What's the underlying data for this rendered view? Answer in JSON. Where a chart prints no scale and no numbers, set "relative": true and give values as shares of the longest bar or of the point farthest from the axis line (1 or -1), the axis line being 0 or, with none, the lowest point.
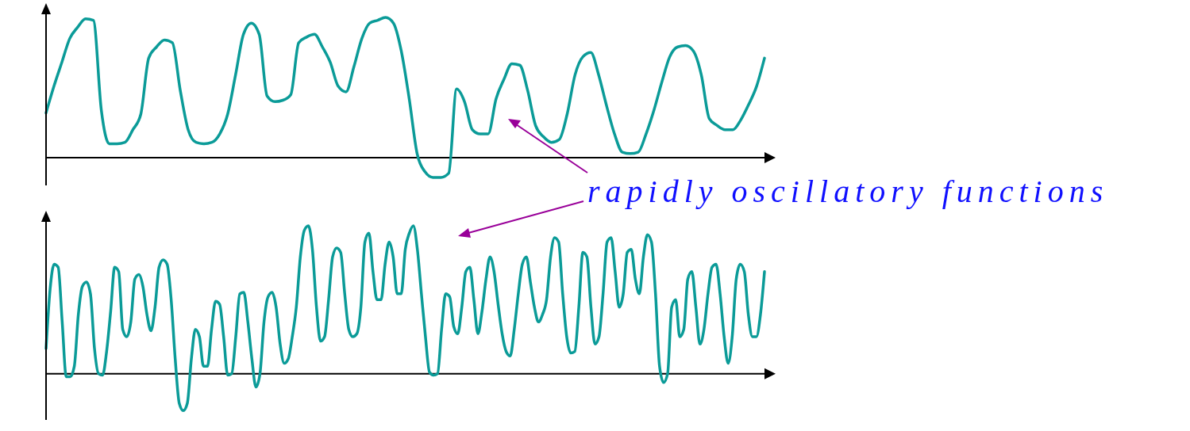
{
  "chart_data": [
    {
      "type": "line",
      "relative": true,
      "marker": "none",
      "annotations": [
        "rapidly oscillatory functions"
      ],
      "categories": [
        null,
        null,
        null,
        null,
        null,
        null,
        null,
        null,
        null,
        null,
        null,
        null,
        null,
        null,
        null,
        null,
        null,
        null,
        null,
        null,
        null,
        null,
        null,
        null,
        null,
        null,
        null,
        null,
        null,
        null,
        null,
        null,
        null,
        null,
        null,
        null,
        null,
        null,
        null,
        null,
        null,
        null,
        null,
        null,
        null,
        null,
        null,
        null,
        null,
        null,
        null,
        null,
        null,
        null,
        null,
        null,
        null,
        null,
        null,
        null,
        null,
        null,
        null,
        null,
        null,
        null,
        null,
        null,
        null,
        null,
        null,
        null,
        null,
        null,
        null,
        null,
        null,
        null,
        null,
        null,
        null,
        null,
        null,
        null,
        null,
        null,
        null,
        null,
        null,
        null,
        null,
        null
      ],
      "series": [
        {
          "color": "#0b9b98",
          "values": [
            0.32,
            0.51,
            0.68,
            0.85,
            0.93,
            0.99,
            0.98,
            0.34,
            0.1,
            0.1,
            0.11,
            0.2,
            0.31,
            0.71,
            0.79,
            0.84,
            0.82,
            0.48,
            0.2,
            0.11,
            0.1,
            0.11,
            0.17,
            0.31,
            0.59,
            0.88,
            0.96,
            0.88,
            0.44,
            0.4,
            0.41,
            0.45,
            0.82,
            0.86,
            0.88,
            0.79,
            0.68,
            0.51,
            0.47,
            0.65,
            0.85,
            0.96,
            0.98,
            1,
            0.96,
            0.76,
            0.42,
            0.03,
            -0.1,
            -0.14,
            -0.14,
            -0.11,
            0.49,
            0.4,
            0.2,
            0.17,
            0.17,
            0.42,
            0.56,
            0.67,
            0.66,
            0.48,
            0.23,
            0.15,
            0.11,
            0.13,
            0.31,
            0.59,
            0.72,
            0.75,
            0.59,
            0.37,
            0.17,
            0.04,
            0.03,
            0.04,
            0.17,
            0.34,
            0.54,
            0.72,
            0.79,
            0.8,
            0.76,
            0.59,
            0.28,
            0.23,
            0.2,
            0.2,
            0.27,
            0.38,
            0.51,
            0.71
          ]
        }
      ]
    },
    {
      "type": "line",
      "relative": true,
      "marker": "none",
      "categories": [
        null,
        null,
        null,
        null,
        null,
        null,
        null,
        null,
        null,
        null,
        null,
        null,
        null,
        null,
        null,
        null,
        null,
        null,
        null,
        null,
        null,
        null,
        null,
        null,
        null,
        null,
        null,
        null,
        null,
        null,
        null,
        null,
        null,
        null,
        null,
        null,
        null,
        null,
        null,
        null,
        null,
        null,
        null,
        null,
        null,
        null,
        null,
        null,
        null,
        null,
        null,
        null,
        null,
        null,
        null,
        null,
        null,
        null,
        null,
        null,
        null,
        null,
        null,
        null,
        null,
        null,
        null,
        null,
        null,
        null,
        null,
        null,
        null,
        null,
        null,
        null,
        null,
        null,
        null,
        null,
        null,
        null,
        null,
        null,
        null,
        null,
        null,
        null,
        null,
        null,
        null,
        null,
        null,
        null,
        null,
        null,
        null,
        null,
        null,
        null,
        null,
        null,
        null,
        null,
        null,
        null,
        null,
        null,
        null,
        null,
        null,
        null,
        null,
        null,
        null,
        null,
        null,
        null,
        null,
        null,
        null,
        null,
        null,
        null,
        null,
        null,
        null,
        null,
        null,
        null,
        null,
        null,
        null,
        null,
        null,
        null,
        null,
        null,
        null,
        null,
        null,
        null,
        null,
        null,
        null,
        null,
        null,
        null,
        null,
        null,
        null,
        null,
        null,
        null,
        null,
        null,
        null,
        null,
        null,
        null,
        null,
        null,
        null,
        null,
        null,
        null,
        null,
        null,
        null,
        null,
        null,
        null,
        null,
        null,
        null,
        null,
        null,
        null,
        null
      ],
      "series": [
        {
          "color": "#0b9b98",
          "values": [
            0.17,
            0.57,
            0.74,
            0.72,
            0.35,
            -0.02,
            -0.02,
            0.05,
            0.4,
            0.59,
            0.62,
            0.54,
            0.17,
            0,
            -0.01,
            0.15,
            0.42,
            0.72,
            0.69,
            0.3,
            0.25,
            0.35,
            0.64,
            0.67,
            0.59,
            0.4,
            0.29,
            0.45,
            0.72,
            0.77,
            0.74,
            0.5,
            0.1,
            -0.2,
            -0.25,
            -0.2,
            0.1,
            0.3,
            0.25,
            0.05,
            0.05,
            0.3,
            0.49,
            0.47,
            0.25,
            -0.01,
            0,
            0.25,
            0.54,
            0.55,
            0.35,
            0.1,
            -0.09,
            0,
            0.35,
            0.52,
            0.55,
            0.45,
            0.2,
            0.07,
            0.1,
            0.25,
            0.45,
            0.79,
            0.97,
            1,
            0.84,
            0.45,
            0.22,
            0.25,
            0.5,
            0.79,
            0.85,
            0.82,
            0.54,
            0.3,
            0.25,
            0.27,
            0.45,
            0.89,
            0.95,
            0.69,
            0.5,
            0.5,
            0.74,
            0.89,
            0.79,
            0.54,
            0.54,
            0.84,
            0.95,
            1,
            0.84,
            0.54,
            0.25,
            0.01,
            -0.01,
            0,
            0.3,
            0.54,
            0.52,
            0.32,
            0.27,
            0.45,
            0.69,
            0.72,
            0.5,
            0.27,
            0.42,
            0.64,
            0.79,
            0.69,
            0.47,
            0.27,
            0.15,
            0.12,
            0.3,
            0.54,
            0.74,
            0.79,
            0.62,
            0.45,
            0.35,
            0.4,
            0.5,
            0.79,
            0.92,
            0.89,
            0.54,
            0.25,
            0.14,
            0.15,
            0.45,
            0.82,
            0.79,
            0.45,
            0.2,
            0.25,
            0.54,
            0.89,
            0.92,
            0.69,
            0.45,
            0.54,
            0.82,
            0.84,
            0.64,
            0.54,
            0.79,
            0.94,
            0.89,
            0.54,
            0.05,
            -0.06,
            0,
            0.45,
            0.5,
            0.25,
            0.3,
            0.64,
            0.69,
            0.45,
            0.2,
            0.3,
            0.54,
            0.72,
            0.74,
            0.54,
            0.25,
            0.07,
            0.25,
            0.64,
            0.74,
            0.69,
            0.4,
            0.25,
            0.25,
            0.4,
            0.69
          ]
        }
      ]
    }
  ]
}
